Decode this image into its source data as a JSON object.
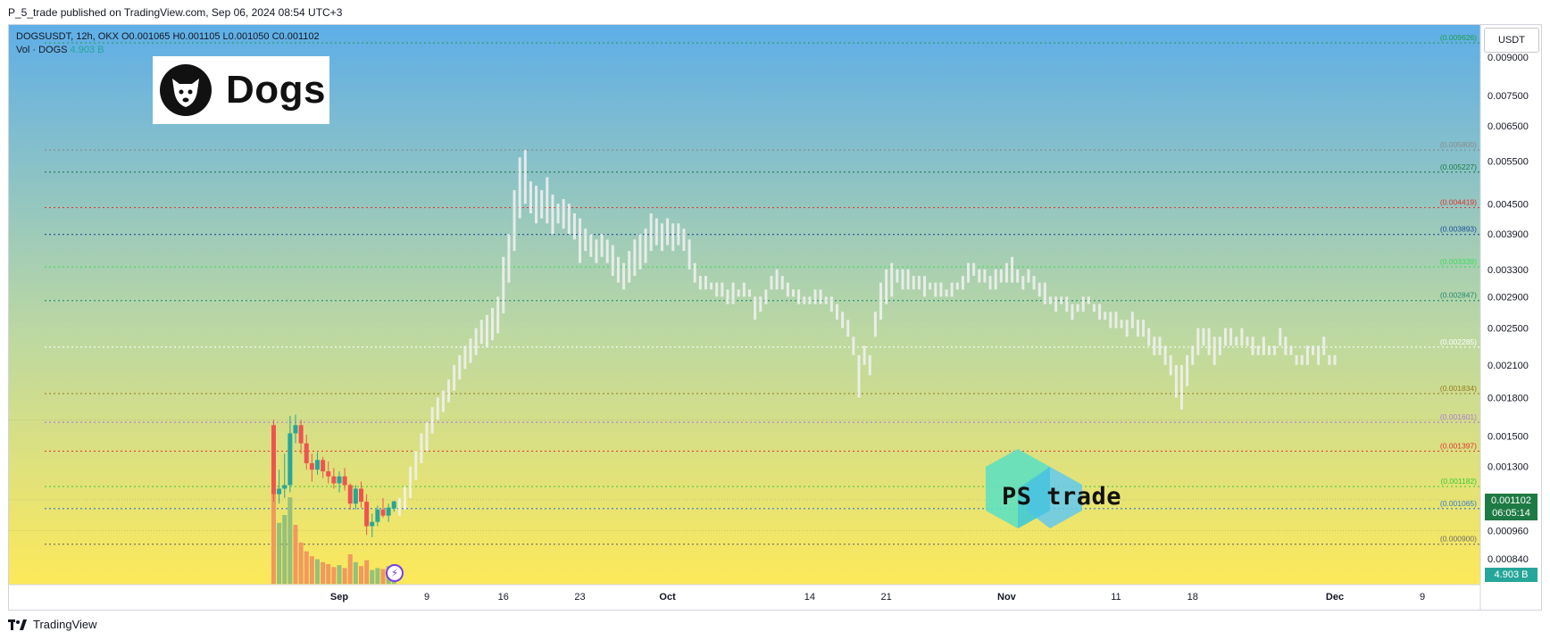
{
  "header": {
    "text": "P_5_trade published on TradingView.com, Sep 06, 2024 08:54 UTC+3"
  },
  "footer": {
    "brand": "TradingView"
  },
  "legend": {
    "symbol_line": "DOGSUSDT, 12h, OKX  O0.001065  H0.001105  L0.001050  C0.001102",
    "vol_label": "Vol · DOGS",
    "vol_value": "4.903 B"
  },
  "logo": {
    "text": "Dogs",
    "icon": "dog-head-icon"
  },
  "watermark": {
    "text": "PS trade"
  },
  "unit_label": "USDT",
  "price_badge": {
    "price": "0.001102",
    "countdown": "06:05:14"
  },
  "volume_badge": "4.903 B",
  "colors": {
    "bg_top": "#5eaee8",
    "bg_bottom": "#fde95a",
    "up": "#26a69a",
    "down": "#ef5350",
    "projection": "#f2f2f2"
  },
  "chart_data": {
    "type": "candlestick",
    "title": "",
    "symbol": "DOGSUSDT",
    "interval": "12h",
    "exchange": "OKX",
    "ohlc_current": {
      "open": 0.001065,
      "high": 0.001105,
      "low": 0.00105,
      "close": 0.001102
    },
    "y_scale": "log",
    "ylim": [
      0.00072,
      0.0105
    ],
    "y_ticks": [
      0.009,
      0.0075,
      0.0065,
      0.0055,
      0.0045,
      0.0039,
      0.0033,
      0.0029,
      0.0025,
      0.0021,
      0.0018,
      0.0015,
      0.0013,
      0.00096,
      0.00084
    ],
    "y_tick_labels": [
      "0.009000",
      "0.007500",
      "0.006500",
      "0.005500",
      "0.004500",
      "0.003900",
      "0.003300",
      "0.002900",
      "0.002500",
      "0.002100",
      "0.001800",
      "0.001500",
      "0.001300",
      "0.000960",
      "0.000840"
    ],
    "x_ticks": [
      {
        "label": "Sep",
        "date": "2024-09-01"
      },
      {
        "label": "9",
        "date": "2024-09-09"
      },
      {
        "label": "16",
        "date": "2024-09-16"
      },
      {
        "label": "23",
        "date": "2024-09-23"
      },
      {
        "label": "Oct",
        "date": "2024-10-01"
      },
      {
        "label": "14",
        "date": "2024-10-14"
      },
      {
        "label": "21",
        "date": "2024-10-21"
      },
      {
        "label": "Nov",
        "date": "2024-11-01"
      },
      {
        "label": "11",
        "date": "2024-11-11"
      },
      {
        "label": "18",
        "date": "2024-11-18"
      },
      {
        "label": "Dec",
        "date": "2024-12-01"
      },
      {
        "label": "9",
        "date": "2024-12-09"
      }
    ],
    "levels": [
      {
        "value": 0.009626,
        "label": "(0.009626)",
        "color": "#1e9e4a"
      },
      {
        "value": 0.0058,
        "label": "(0.005800)",
        "color": "#8a8a8a"
      },
      {
        "value": 0.005227,
        "label": "(0.005227)",
        "color": "#1e7a44"
      },
      {
        "value": 0.004419,
        "label": "(0.004419)",
        "color": "#e03131"
      },
      {
        "value": 0.003893,
        "label": "(0.003893)",
        "color": "#1c4fa0"
      },
      {
        "value": 0.003339,
        "label": "(0.003339)",
        "color": "#3ddc5a"
      },
      {
        "value": 0.002847,
        "label": "(0.002847)",
        "color": "#1f8a6e"
      },
      {
        "value": 0.002285,
        "label": "(0.002285)",
        "color": "#ffffff"
      },
      {
        "value": 0.001834,
        "label": "(0.001834)",
        "color": "#9a7a1a"
      },
      {
        "value": 0.001601,
        "label": "(0.001601)",
        "color": "#b07ad8"
      },
      {
        "value": 0.001397,
        "label": "(0.001397)",
        "color": "#e03131"
      },
      {
        "value": 0.001182,
        "label": "(0.001182)",
        "color": "#33cc33"
      },
      {
        "value": 0.001065,
        "label": "(0.001065)",
        "color": "#2e7bd6"
      },
      {
        "value": 0.0009,
        "label": "(0.000900)",
        "color": "#6b6b6b"
      }
    ],
    "candles": [
      {
        "date": "2024-08-26",
        "o": 0.00158,
        "h": 0.00162,
        "l": 0.0011,
        "c": 0.00114
      },
      {
        "date": "2024-08-26T12",
        "o": 0.00114,
        "h": 0.00128,
        "l": 0.00109,
        "c": 0.00117
      },
      {
        "date": "2024-08-27",
        "o": 0.00117,
        "h": 0.00138,
        "l": 0.00112,
        "c": 0.00119
      },
      {
        "date": "2024-08-27T12",
        "o": 0.00119,
        "h": 0.00165,
        "l": 0.00115,
        "c": 0.00152
      },
      {
        "date": "2024-08-28",
        "o": 0.00152,
        "h": 0.00166,
        "l": 0.00145,
        "c": 0.00158
      },
      {
        "date": "2024-08-28T12",
        "o": 0.00158,
        "h": 0.00162,
        "l": 0.00138,
        "c": 0.00145
      },
      {
        "date": "2024-08-29",
        "o": 0.00145,
        "h": 0.00151,
        "l": 0.00128,
        "c": 0.00132
      },
      {
        "date": "2024-08-29T12",
        "o": 0.00132,
        "h": 0.00138,
        "l": 0.00121,
        "c": 0.00128
      },
      {
        "date": "2024-08-30",
        "o": 0.00128,
        "h": 0.00139,
        "l": 0.00125,
        "c": 0.00134
      },
      {
        "date": "2024-08-30T12",
        "o": 0.00134,
        "h": 0.00136,
        "l": 0.00123,
        "c": 0.00127
      },
      {
        "date": "2024-08-31",
        "o": 0.00127,
        "h": 0.00133,
        "l": 0.0012,
        "c": 0.00124
      },
      {
        "date": "2024-08-31T12",
        "o": 0.00124,
        "h": 0.00129,
        "l": 0.00117,
        "c": 0.0012
      },
      {
        "date": "2024-09-01",
        "o": 0.0012,
        "h": 0.00127,
        "l": 0.00115,
        "c": 0.00124
      },
      {
        "date": "2024-09-01T12",
        "o": 0.00124,
        "h": 0.00129,
        "l": 0.00116,
        "c": 0.00119
      },
      {
        "date": "2024-09-02",
        "o": 0.00119,
        "h": 0.0012,
        "l": 0.00106,
        "c": 0.00109
      },
      {
        "date": "2024-09-02T12",
        "o": 0.00109,
        "h": 0.00119,
        "l": 0.00106,
        "c": 0.00117
      },
      {
        "date": "2024-09-03",
        "o": 0.00117,
        "h": 0.00121,
        "l": 0.00107,
        "c": 0.0011
      },
      {
        "date": "2024-09-03T12",
        "o": 0.0011,
        "h": 0.00114,
        "l": 0.00094,
        "c": 0.00098
      },
      {
        "date": "2024-09-04",
        "o": 0.00098,
        "h": 0.00104,
        "l": 0.00093,
        "c": 0.001
      },
      {
        "date": "2024-09-04T12",
        "o": 0.001,
        "h": 0.00108,
        "l": 0.00098,
        "c": 0.00106
      },
      {
        "date": "2024-09-05",
        "o": 0.00106,
        "h": 0.00112,
        "l": 0.00102,
        "c": 0.00103
      },
      {
        "date": "2024-09-05T12",
        "o": 0.00103,
        "h": 0.00109,
        "l": 0.001,
        "c": 0.00107
      },
      {
        "date": "2024-09-06",
        "o": 0.001065,
        "h": 0.001105,
        "l": 0.00105,
        "c": 0.001102
      }
    ],
    "volume_bars": [
      {
        "date": "2024-08-26",
        "relative": 0.95,
        "direction": "down"
      },
      {
        "date": "2024-08-26T12",
        "relative": 0.62,
        "direction": "up"
      },
      {
        "date": "2024-08-27",
        "relative": 0.7,
        "direction": "up"
      },
      {
        "date": "2024-08-27T12",
        "relative": 0.88,
        "direction": "up"
      },
      {
        "date": "2024-08-28",
        "relative": 0.6,
        "direction": "down"
      },
      {
        "date": "2024-08-28T12",
        "relative": 0.42,
        "direction": "down"
      },
      {
        "date": "2024-08-29",
        "relative": 0.33,
        "direction": "down"
      },
      {
        "date": "2024-08-29T12",
        "relative": 0.28,
        "direction": "down"
      },
      {
        "date": "2024-08-30",
        "relative": 0.25,
        "direction": "up"
      },
      {
        "date": "2024-08-30T12",
        "relative": 0.22,
        "direction": "down"
      },
      {
        "date": "2024-08-31",
        "relative": 0.2,
        "direction": "down"
      },
      {
        "date": "2024-08-31T12",
        "relative": 0.17,
        "direction": "down"
      },
      {
        "date": "2024-09-01",
        "relative": 0.19,
        "direction": "up"
      },
      {
        "date": "2024-09-01T12",
        "relative": 0.16,
        "direction": "down"
      },
      {
        "date": "2024-09-02",
        "relative": 0.3,
        "direction": "down"
      },
      {
        "date": "2024-09-02T12",
        "relative": 0.22,
        "direction": "up"
      },
      {
        "date": "2024-09-03",
        "relative": 0.18,
        "direction": "down"
      },
      {
        "date": "2024-09-03T12",
        "relative": 0.24,
        "direction": "down"
      },
      {
        "date": "2024-09-04",
        "relative": 0.14,
        "direction": "up"
      },
      {
        "date": "2024-09-04T12",
        "relative": 0.16,
        "direction": "up"
      },
      {
        "date": "2024-09-05",
        "relative": 0.15,
        "direction": "down"
      },
      {
        "date": "2024-09-05T12",
        "relative": 0.18,
        "direction": "up"
      },
      {
        "date": "2024-09-06",
        "relative": 0.2,
        "direction": "up"
      }
    ],
    "projection": {
      "description": "Light bar-pattern fractal projection",
      "points": [
        [
          0.00103,
          0.00112
        ],
        [
          0.00106,
          0.00118
        ],
        [
          0.00112,
          0.0013
        ],
        [
          0.00122,
          0.0014
        ],
        [
          0.00132,
          0.00152
        ],
        [
          0.0014,
          0.0016
        ],
        [
          0.00152,
          0.00172
        ],
        [
          0.00162,
          0.0018
        ],
        [
          0.00168,
          0.00186
        ],
        [
          0.00176,
          0.00196
        ],
        [
          0.00186,
          0.0021
        ],
        [
          0.00196,
          0.0022
        ],
        [
          0.00206,
          0.0023
        ],
        [
          0.00212,
          0.00238
        ],
        [
          0.0022,
          0.0025
        ],
        [
          0.00232,
          0.0026
        ],
        [
          0.00228,
          0.00266
        ],
        [
          0.00236,
          0.00275
        ],
        [
          0.00244,
          0.0029
        ],
        [
          0.00268,
          0.0035
        ],
        [
          0.0031,
          0.0039
        ],
        [
          0.0036,
          0.0048
        ],
        [
          0.0042,
          0.0056
        ],
        [
          0.0045,
          0.0058
        ],
        [
          0.0043,
          0.005
        ],
        [
          0.0041,
          0.0049
        ],
        [
          0.0042,
          0.0048
        ],
        [
          0.0041,
          0.0051
        ],
        [
          0.0039,
          0.0047
        ],
        [
          0.0041,
          0.0045
        ],
        [
          0.004,
          0.0046
        ],
        [
          0.0039,
          0.0045
        ],
        [
          0.0038,
          0.0043
        ],
        [
          0.0034,
          0.0042
        ],
        [
          0.0036,
          0.004
        ],
        [
          0.0035,
          0.0039
        ],
        [
          0.0034,
          0.0038
        ],
        [
          0.0035,
          0.0039
        ],
        [
          0.0034,
          0.0038
        ],
        [
          0.0032,
          0.0037
        ],
        [
          0.0031,
          0.0035
        ],
        [
          0.003,
          0.0034
        ],
        [
          0.0031,
          0.0036
        ],
        [
          0.0032,
          0.0038
        ],
        [
          0.0033,
          0.0039
        ],
        [
          0.0034,
          0.004
        ],
        [
          0.0036,
          0.0043
        ],
        [
          0.0037,
          0.0042
        ],
        [
          0.0036,
          0.0041
        ],
        [
          0.0037,
          0.0042
        ],
        [
          0.0036,
          0.0041
        ],
        [
          0.0037,
          0.0041
        ],
        [
          0.0036,
          0.004
        ],
        [
          0.0033,
          0.0038
        ],
        [
          0.0031,
          0.0034
        ],
        [
          0.003,
          0.0032
        ],
        [
          0.003,
          0.0032
        ],
        [
          0.003,
          0.0031
        ],
        [
          0.0029,
          0.0031
        ],
        [
          0.0029,
          0.0031
        ],
        [
          0.0028,
          0.003
        ],
        [
          0.0028,
          0.0031
        ],
        [
          0.0029,
          0.003
        ],
        [
          0.0029,
          0.0031
        ],
        [
          0.0029,
          0.003
        ],
        [
          0.0026,
          0.0029
        ],
        [
          0.0027,
          0.0029
        ],
        [
          0.0028,
          0.003
        ],
        [
          0.003,
          0.0032
        ],
        [
          0.003,
          0.0033
        ],
        [
          0.003,
          0.0032
        ],
        [
          0.0029,
          0.0031
        ],
        [
          0.0029,
          0.003
        ],
        [
          0.0028,
          0.003
        ],
        [
          0.0028,
          0.0029
        ],
        [
          0.0028,
          0.0029
        ],
        [
          0.0028,
          0.003
        ],
        [
          0.0028,
          0.003
        ],
        [
          0.0028,
          0.0029
        ],
        [
          0.0027,
          0.0029
        ],
        [
          0.0026,
          0.0028
        ],
        [
          0.0025,
          0.0027
        ],
        [
          0.0024,
          0.0026
        ],
        [
          0.0022,
          0.0024
        ],
        [
          0.0018,
          0.0022
        ],
        [
          0.0021,
          0.0023
        ],
        [
          0.002,
          0.0022
        ],
        [
          0.0024,
          0.0027
        ],
        [
          0.0026,
          0.0031
        ],
        [
          0.0028,
          0.0033
        ],
        [
          0.0029,
          0.0034
        ],
        [
          0.0031,
          0.0033
        ],
        [
          0.003,
          0.0033
        ],
        [
          0.003,
          0.0033
        ],
        [
          0.003,
          0.0032
        ],
        [
          0.003,
          0.0032
        ],
        [
          0.0029,
          0.0032
        ],
        [
          0.003,
          0.0031
        ],
        [
          0.0029,
          0.0031
        ],
        [
          0.0029,
          0.0031
        ],
        [
          0.0029,
          0.003
        ],
        [
          0.0029,
          0.0031
        ],
        [
          0.003,
          0.0031
        ],
        [
          0.003,
          0.0032
        ],
        [
          0.0031,
          0.0034
        ],
        [
          0.0032,
          0.0034
        ],
        [
          0.0031,
          0.0033
        ],
        [
          0.0031,
          0.0033
        ],
        [
          0.003,
          0.0032
        ],
        [
          0.003,
          0.0033
        ],
        [
          0.0031,
          0.0033
        ],
        [
          0.0031,
          0.0034
        ],
        [
          0.0031,
          0.0035
        ],
        [
          0.0031,
          0.0033
        ],
        [
          0.003,
          0.0032
        ],
        [
          0.0031,
          0.0033
        ],
        [
          0.003,
          0.0032
        ],
        [
          0.0029,
          0.0031
        ],
        [
          0.0028,
          0.0031
        ],
        [
          0.0028,
          0.0029
        ],
        [
          0.0027,
          0.0029
        ],
        [
          0.0028,
          0.0029
        ],
        [
          0.0027,
          0.0029
        ],
        [
          0.0026,
          0.0028
        ],
        [
          0.0027,
          0.0028
        ],
        [
          0.0027,
          0.0029
        ],
        [
          0.0028,
          0.0029
        ],
        [
          0.0027,
          0.0028
        ],
        [
          0.0026,
          0.0028
        ],
        [
          0.0026,
          0.0027
        ],
        [
          0.0025,
          0.0027
        ],
        [
          0.0025,
          0.0027
        ],
        [
          0.0025,
          0.0026
        ],
        [
          0.0024,
          0.0026
        ],
        [
          0.0025,
          0.0027
        ],
        [
          0.0024,
          0.0026
        ],
        [
          0.0024,
          0.0026
        ],
        [
          0.0023,
          0.0025
        ],
        [
          0.0022,
          0.0024
        ],
        [
          0.0022,
          0.0024
        ],
        [
          0.0021,
          0.0023
        ],
        [
          0.002,
          0.0022
        ],
        [
          0.0018,
          0.0021
        ],
        [
          0.0017,
          0.0021
        ],
        [
          0.0019,
          0.0022
        ],
        [
          0.0021,
          0.0023
        ],
        [
          0.0022,
          0.0025
        ],
        [
          0.0023,
          0.0025
        ],
        [
          0.0022,
          0.0025
        ],
        [
          0.0021,
          0.0024
        ],
        [
          0.0022,
          0.0024
        ],
        [
          0.0023,
          0.0025
        ],
        [
          0.0023,
          0.0025
        ],
        [
          0.0023,
          0.0024
        ],
        [
          0.0023,
          0.0025
        ],
        [
          0.0023,
          0.0024
        ],
        [
          0.0022,
          0.0024
        ],
        [
          0.0022,
          0.0023
        ],
        [
          0.0022,
          0.0024
        ],
        [
          0.0022,
          0.0023
        ],
        [
          0.0022,
          0.0023
        ],
        [
          0.0023,
          0.0025
        ],
        [
          0.0022,
          0.0024
        ],
        [
          0.0022,
          0.0023
        ],
        [
          0.0021,
          0.0022
        ],
        [
          0.0021,
          0.0022
        ],
        [
          0.0021,
          0.0023
        ],
        [
          0.0022,
          0.0023
        ],
        [
          0.0021,
          0.0023
        ],
        [
          0.0022,
          0.0024
        ],
        [
          0.0021,
          0.0022
        ],
        [
          0.0021,
          0.0022
        ]
      ]
    }
  }
}
